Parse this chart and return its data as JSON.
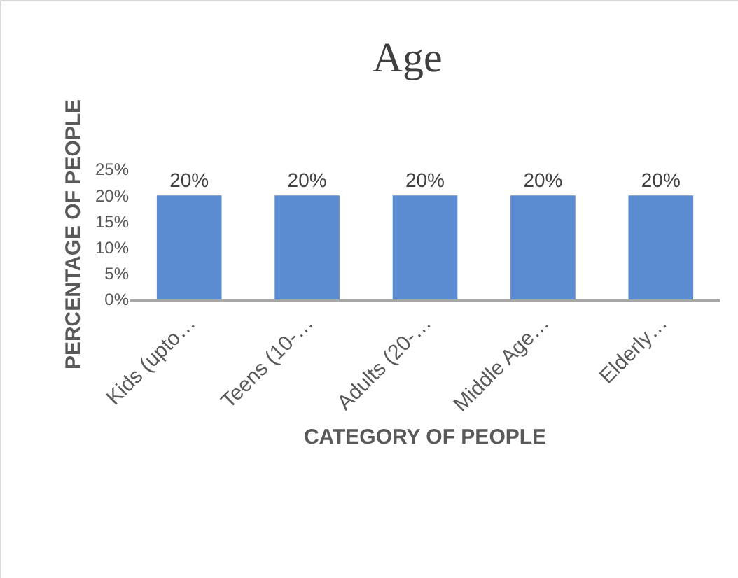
{
  "chart_data": {
    "type": "bar",
    "title": "Age",
    "xlabel": "CATEGORY OF PEOPLE",
    "ylabel": "PERCENTAGE OF PEOPLE",
    "categories": [
      "Kids (upto…",
      "Teens (10-…",
      "Adults (20-…",
      "Middle Age…",
      "Elderly…"
    ],
    "values": [
      20,
      20,
      20,
      20,
      20
    ],
    "value_labels": [
      "20%",
      "20%",
      "20%",
      "20%",
      "20%"
    ],
    "color": "#5b8bd0",
    "ylim": [
      0,
      25
    ],
    "yticks": [
      {
        "value": 0,
        "label": "0%"
      },
      {
        "value": 5,
        "label": "5%"
      },
      {
        "value": 10,
        "label": "10%"
      },
      {
        "value": 15,
        "label": "15%"
      },
      {
        "value": 20,
        "label": "20%"
      },
      {
        "value": 25,
        "label": "25%"
      }
    ],
    "grid": false
  }
}
